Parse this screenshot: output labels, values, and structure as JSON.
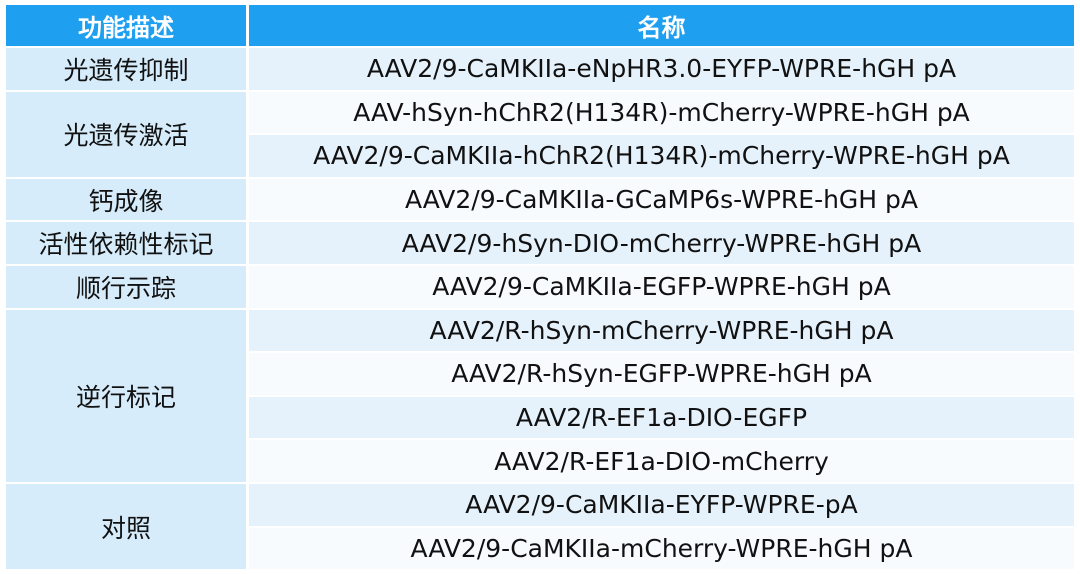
{
  "table": {
    "header": [
      "功能描述",
      "名称"
    ],
    "groups": [
      {
        "function": "光遗传抑制",
        "names": [
          "AAV2/9-CaMKIIa-eNpHR3.0-EYFP-WPRE-hGH pA"
        ]
      },
      {
        "function": "光遗传激活",
        "names": [
          "AAV-hSyn-hChR2(H134R)-mCherry-WPRE-hGH pA",
          "AAV2/9-CaMKIIa-hChR2(H134R)-mCherry-WPRE-hGH pA"
        ]
      },
      {
        "function": "钙成像",
        "names": [
          "AAV2/9-CaMKIIa-GCaMP6s-WPRE-hGH pA"
        ]
      },
      {
        "function": "活性依赖性标记",
        "names": [
          "AAV2/9-hSyn-DIO-mCherry-WPRE-hGH pA"
        ]
      },
      {
        "function": "顺行示踪",
        "names": [
          "AAV2/9-CaMKIIa-EGFP-WPRE-hGH pA"
        ]
      },
      {
        "function": "逆行标记",
        "names": [
          "AAV2/R-hSyn-mCherry-WPRE-hGH pA",
          "AAV2/R-hSyn-EGFP-WPRE-hGH pA",
          "AAV2/R-EF1a-DIO-EGFP",
          "AAV2/R-EF1a-DIO-mCherry"
        ]
      },
      {
        "function": "对照",
        "names": [
          "AAV2/9-CaMKIIa-EYFP-WPRE-pA",
          "AAV2/9-CaMKIIa-mCherry-WPRE-hGH pA"
        ]
      }
    ]
  }
}
